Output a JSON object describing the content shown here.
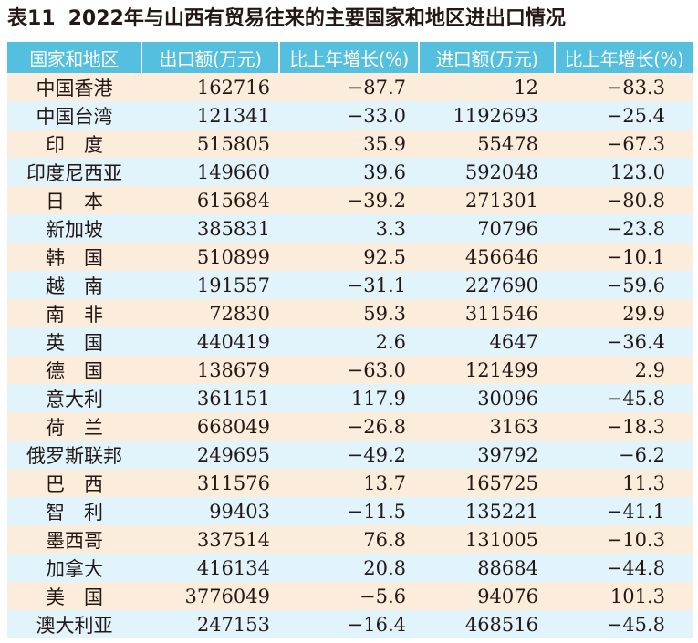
{
  "title": {
    "number": "表11",
    "text": "2022年与山西有贸易往来的主要国家和地区进出口情况"
  },
  "headers": [
    "国家和地区",
    "出口额(万元)",
    "比上年增长(%)",
    "进口额(万元)",
    "比上年增长(%)"
  ],
  "rows": [
    [
      "中国香港",
      "162716",
      "−87.7",
      "12",
      "−83.3"
    ],
    [
      "中国台湾",
      "121341",
      "−33.0",
      "1192693",
      "−25.4"
    ],
    [
      "印　度",
      "515805",
      "35.9",
      "55478",
      "−67.3"
    ],
    [
      "印度尼西亚",
      "149660",
      "39.6",
      "592048",
      "123.0"
    ],
    [
      "日　本",
      "615684",
      "−39.2",
      "271301",
      "−80.8"
    ],
    [
      "新加坡",
      "385831",
      "3.3",
      "70796",
      "−23.8"
    ],
    [
      "韩　国",
      "510899",
      "92.5",
      "456646",
      "−10.1"
    ],
    [
      "越　南",
      "191557",
      "−31.1",
      "227690",
      "−59.6"
    ],
    [
      "南　非",
      "72830",
      "59.3",
      "311546",
      "29.9"
    ],
    [
      "英　国",
      "440419",
      "2.6",
      "4647",
      "−36.4"
    ],
    [
      "德　国",
      "138679",
      "−63.0",
      "121499",
      "2.9"
    ],
    [
      "意大利",
      "361151",
      "117.9",
      "30096",
      "−45.8"
    ],
    [
      "荷　兰",
      "668049",
      "−26.8",
      "3163",
      "−18.3"
    ],
    [
      "俄罗斯联邦",
      "249695",
      "−49.2",
      "39792",
      "−6.2"
    ],
    [
      "巴　西",
      "311576",
      "13.7",
      "165725",
      "11.3"
    ],
    [
      "智　利",
      "99403",
      "−11.5",
      "135221",
      "−41.1"
    ],
    [
      "墨西哥",
      "337514",
      "76.8",
      "131005",
      "−10.3"
    ],
    [
      "加拿大",
      "416134",
      "20.8",
      "88684",
      "−44.8"
    ],
    [
      "美　国",
      "3776049",
      "−5.6",
      "94076",
      "101.3"
    ],
    [
      "澳大利亚",
      "247153",
      "−16.4",
      "468516",
      "−45.8"
    ]
  ],
  "colors": {
    "header_bg": "#55bfe0",
    "row_odd_bg": "#fcecdb",
    "row_even_bg": "#e1f3fb"
  }
}
